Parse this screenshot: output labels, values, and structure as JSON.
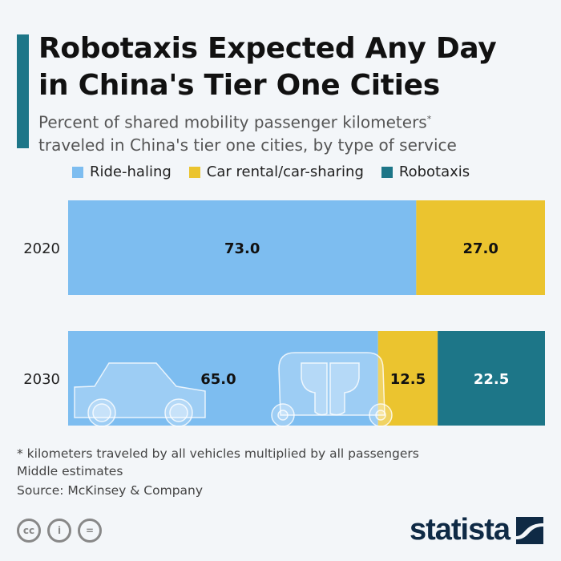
{
  "title_line1": "Robotaxis Expected Any Day",
  "title_line2": "in China's Tier One Cities",
  "subtitle_line1": "Percent of shared mobility passenger kilometers",
  "subtitle_asterisk": "*",
  "subtitle_line2": "traveled in China's tier one cities, by type of service",
  "footnotes": [
    "* kilometers traveled by all vehicles multiplied by all passengers",
    "Middle estimates",
    "Source: McKinsey & Company"
  ],
  "logo_text": "statista",
  "license_icons": [
    "cc-icon",
    "attribution-icon",
    "no-derivatives-icon"
  ],
  "chart_data": {
    "type": "bar",
    "orientation": "horizontal",
    "stacked": true,
    "categories": [
      "2020",
      "2030"
    ],
    "series": [
      {
        "name": "Ride-haling",
        "color": "#7dbdf0",
        "values": [
          73.0,
          65.0
        ]
      },
      {
        "name": "Car rental/car-sharing",
        "color": "#ebc42f",
        "values": [
          27.0,
          12.5
        ]
      },
      {
        "name": "Robotaxis",
        "color": "#1d7688",
        "values": [
          0,
          22.5
        ]
      }
    ],
    "xlim": [
      0,
      100
    ],
    "legend": "top",
    "grid": false,
    "data_labels": true
  }
}
